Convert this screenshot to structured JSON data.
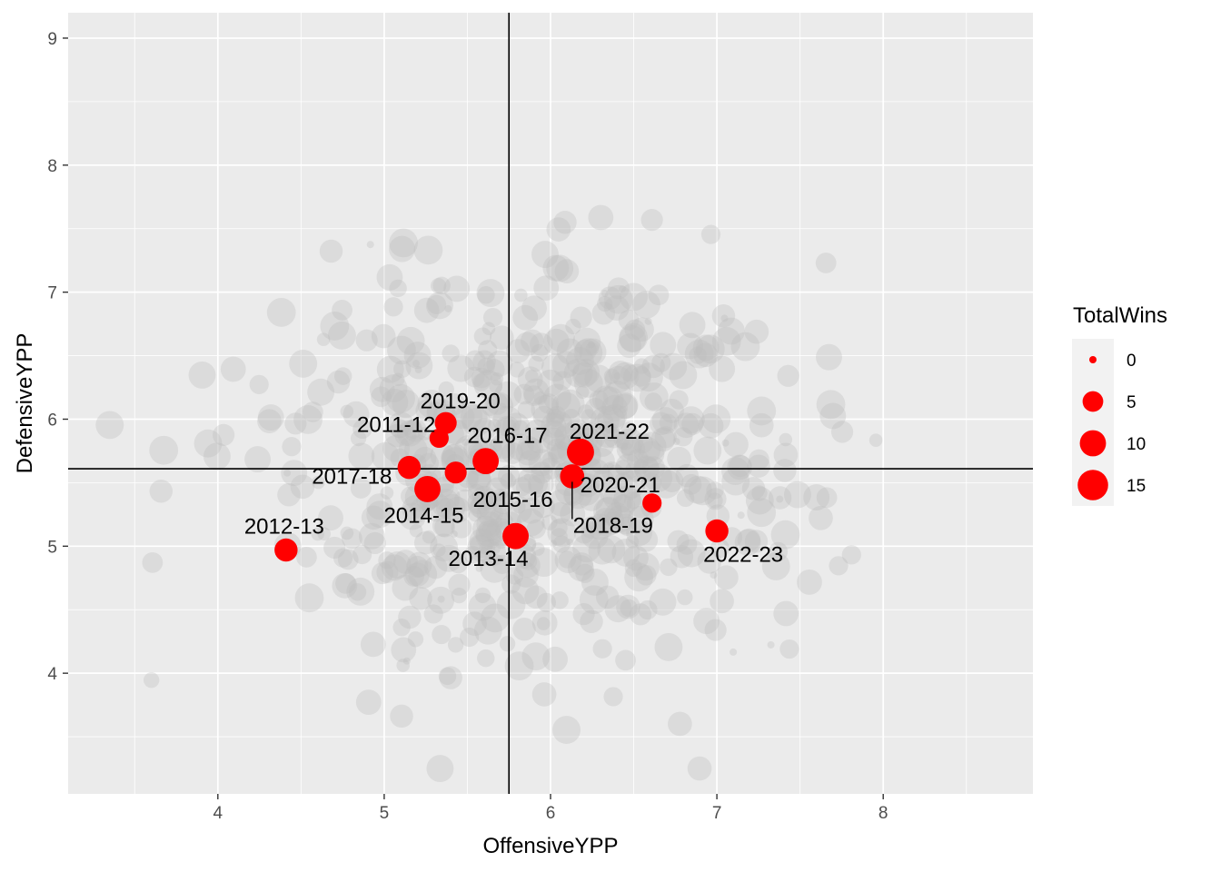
{
  "chart_data": {
    "type": "scatter",
    "title": "",
    "xlabel": "OffensiveYPP",
    "ylabel": "DefensiveYPP",
    "xlim": [
      3.1,
      8.9
    ],
    "ylim": [
      3.05,
      9.2
    ],
    "x_ticks": [
      4,
      5,
      6,
      7,
      8
    ],
    "y_ticks": [
      4,
      5,
      6,
      7,
      8,
      9
    ],
    "grid": true,
    "reference_lines": {
      "vertical_x": 5.75,
      "horizontal_y": 5.61
    },
    "colors": {
      "highlight": "#ff0000",
      "background_points": "#bebebe",
      "panel": "#ebebeb",
      "grid": "#ffffff"
    },
    "size_legend": {
      "title": "TotalWins",
      "position": "right",
      "entries": [
        {
          "label": "0",
          "value": 0
        },
        {
          "label": "5",
          "value": 5
        },
        {
          "label": "10",
          "value": 10
        },
        {
          "label": "15",
          "value": 15
        }
      ]
    },
    "series": [
      {
        "color": "#ff0000",
        "points": [
          {
            "label": "2011-12",
            "x": 5.33,
            "y": 5.85,
            "wins": 4
          },
          {
            "label": "2012-13",
            "x": 4.41,
            "y": 4.97,
            "wins": 7
          },
          {
            "label": "2013-14",
            "x": 5.79,
            "y": 5.08,
            "wins": 10
          },
          {
            "label": "2014-15",
            "x": 5.26,
            "y": 5.45,
            "wins": 10
          },
          {
            "label": "2015-16",
            "x": 5.43,
            "y": 5.58,
            "wins": 6
          },
          {
            "label": "2016-17",
            "x": 5.61,
            "y": 5.67,
            "wins": 10
          },
          {
            "label": "2017-18",
            "x": 5.15,
            "y": 5.62,
            "wins": 7
          },
          {
            "label": "2018-19",
            "x": 6.13,
            "y": 5.55,
            "wins": 8
          },
          {
            "label": "2019-20",
            "x": 5.37,
            "y": 5.97,
            "wins": 6
          },
          {
            "label": "2020-21",
            "x": 6.61,
            "y": 5.34,
            "wins": 4
          },
          {
            "label": "2021-22",
            "x": 6.18,
            "y": 5.74,
            "wins": 11
          },
          {
            "label": "2022-23",
            "x": 7.0,
            "y": 5.12,
            "wins": 7
          }
        ]
      }
    ],
    "background_points_count": 700
  }
}
